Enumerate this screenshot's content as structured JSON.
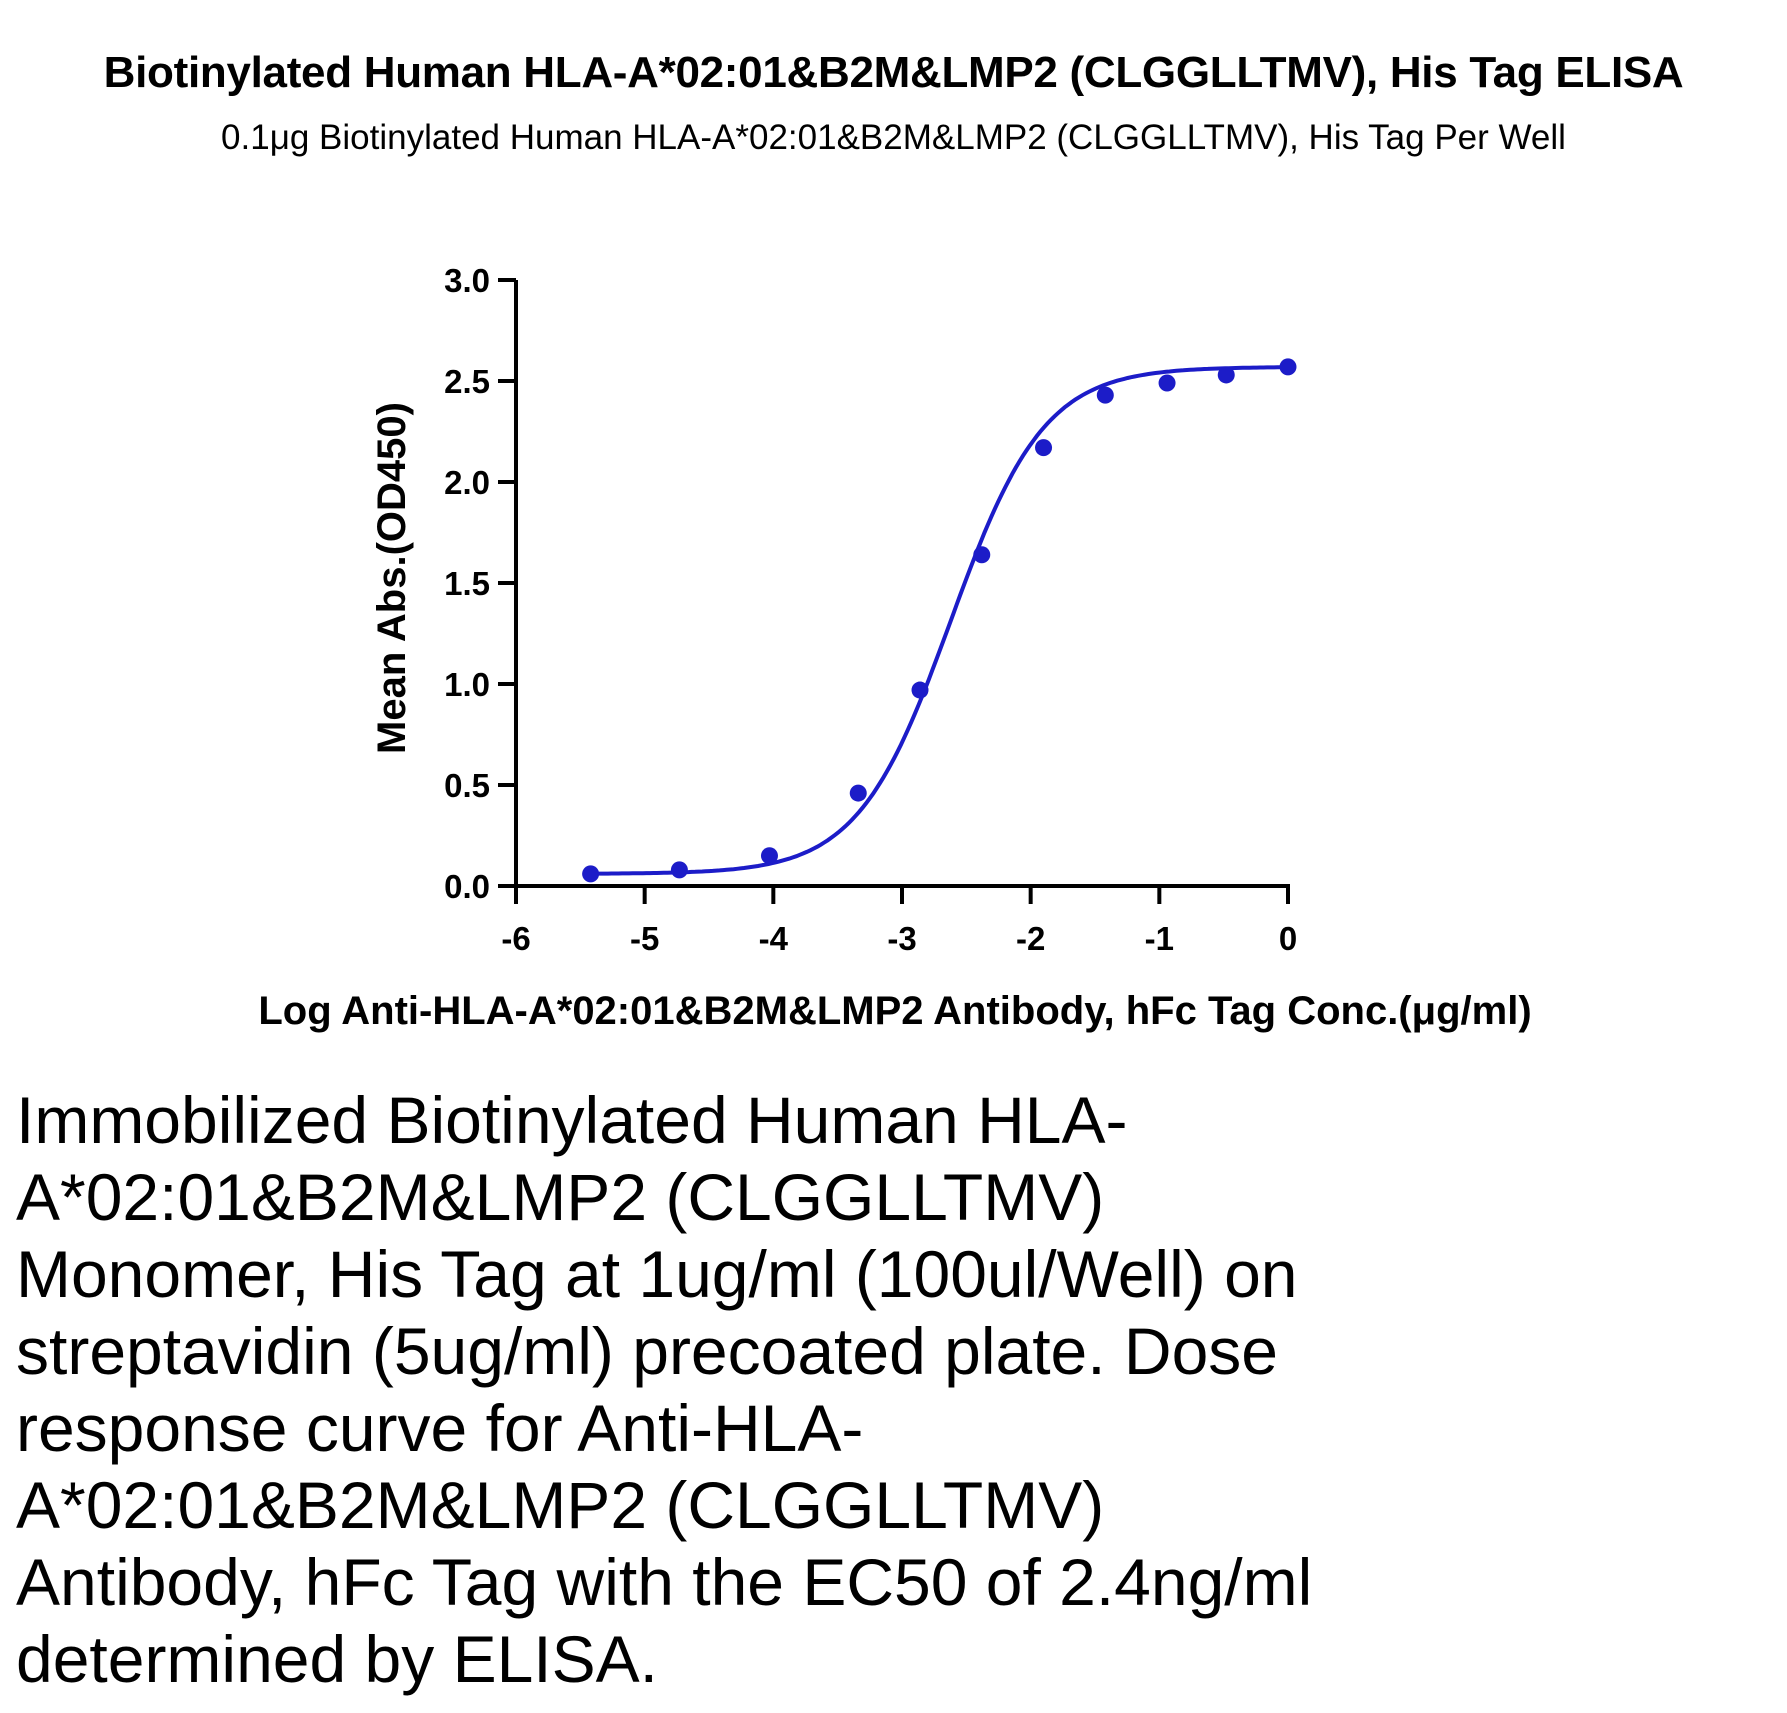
{
  "chart_data": {
    "type": "line",
    "title": "Biotinylated Human HLA-A*02:01&B2M&LMP2 (CLGGLLTMV), His Tag ELISA",
    "subtitle": "0.1μg Biotinylated Human HLA-A*02:01&B2M&LMP2 (CLGGLLTMV), His Tag Per Well",
    "xlabel": "Log Anti-HLA-A*02:01&B2M&LMP2 Antibody, hFc Tag Conc.(μg/ml)",
    "ylabel": "Mean Abs.(OD450)",
    "xlim": [
      -6,
      0
    ],
    "ylim": [
      0,
      3.0
    ],
    "xticks": [
      "-6",
      "-5",
      "-4",
      "-3",
      "-2",
      "-1",
      "0"
    ],
    "yticks": [
      "0.0",
      "0.5",
      "1.0",
      "1.5",
      "2.0",
      "2.5",
      "3.0"
    ],
    "grid": false,
    "series": [
      {
        "x": [
          -5.42,
          -4.73,
          -4.03,
          -3.34,
          -2.86,
          -2.38,
          -1.9,
          -1.42,
          -0.94,
          -0.48,
          0.0
        ],
        "y": [
          0.06,
          0.08,
          0.15,
          0.46,
          0.97,
          1.64,
          2.17,
          2.43,
          2.49,
          2.53,
          2.57
        ],
        "color": "#1c1cc8"
      }
    ],
    "fit_curve": {
      "bottom": 0.06,
      "top": 2.57,
      "log_ec50": -2.62,
      "hill_slope": 1.2
    }
  },
  "caption": "Immobilized Biotinylated Human HLA-A*02:01&B2M&LMP2 (CLGGLLTMV) Monomer, His Tag at 1ug/ml (100ul/Well) on streptavidin (5ug/ml) precoated plate. Dose response curve for Anti-HLA-A*02:01&B2M&LMP2 (CLGGLLTMV) Antibody, hFc Tag with the EC50 of 2.4ng/ml determined by ELISA."
}
